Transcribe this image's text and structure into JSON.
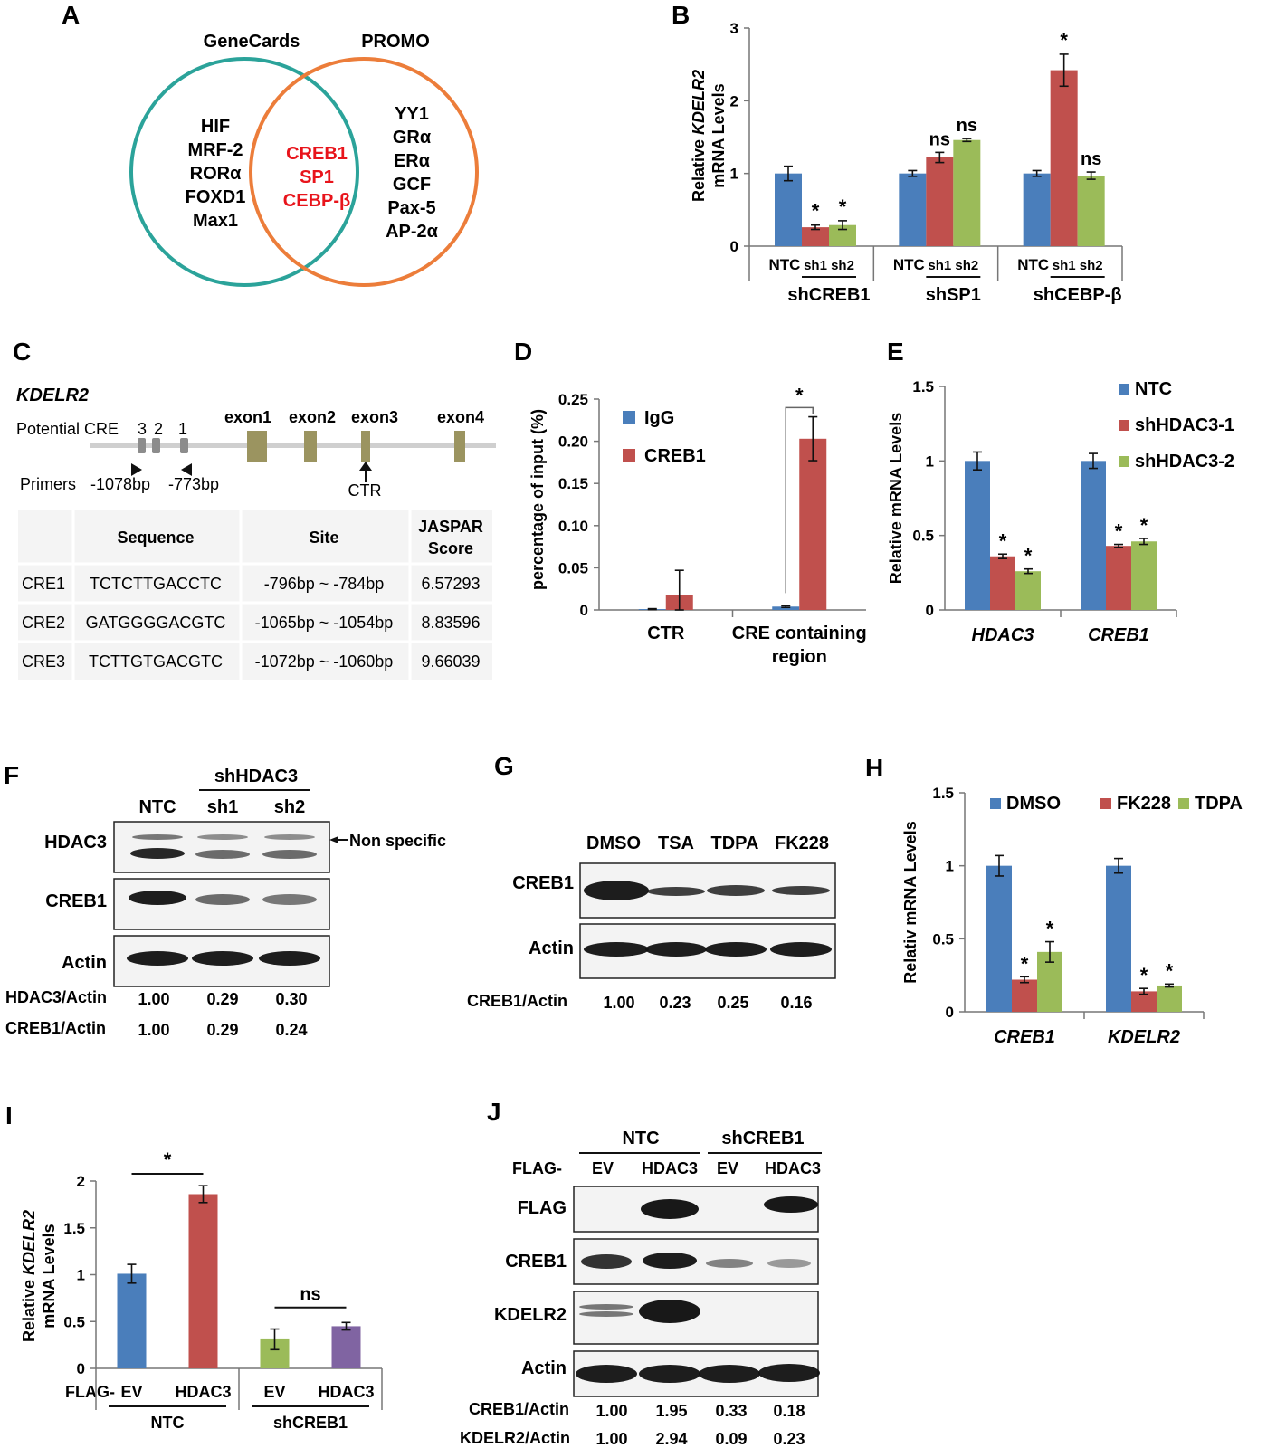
{
  "colors": {
    "blue": "#4a7ebb",
    "red": "#c0504d",
    "green": "#9bbb59",
    "purple": "#8064a2",
    "teal": "#2ba39a",
    "orange": "#ec7d3a",
    "highlight": "#e8141b",
    "gene_bar": "#9b9460",
    "cre_box": "#8c8c8c"
  },
  "panels": {
    "A": {
      "label": "A",
      "left_title": "GeneCards",
      "right_title": "PROMO",
      "left_only": [
        "HIF",
        "MRF-2",
        "RORα",
        "FOXD1",
        "Max1"
      ],
      "overlap": [
        "CREB1",
        "SP1",
        "CEBP-β"
      ],
      "right_only": [
        "YY1",
        "GRα",
        "ERα",
        "GCF",
        "Pax-5",
        "AP-2α"
      ]
    },
    "B": {
      "label": "B"
    },
    "C": {
      "label": "C",
      "gene": "KDELR2",
      "cre_label": "Potential CRE",
      "cre_numbers": [
        "3",
        "2",
        "1"
      ],
      "exons": [
        "exon1",
        "exon2",
        "exon3",
        "exon4"
      ],
      "primers_label": "Primers",
      "primer_left": "-1078bp",
      "primer_right": "-773bp",
      "ctr_label": "CTR",
      "table": {
        "headers": [
          "",
          "Sequence",
          "Site",
          "JASPAR",
          "Score"
        ],
        "rows": [
          [
            "CRE1",
            "TCTCTTGACCTC",
            "-796bp ~ -784bp",
            "6.57293"
          ],
          [
            "CRE2",
            "GATGGGGACGTC",
            "-1065bp ~ -1054bp",
            "8.83596"
          ],
          [
            "CRE3",
            "TCTTGTGACGTC",
            "-1072bp ~ -1060bp",
            "9.66039"
          ]
        ]
      }
    },
    "D": {
      "label": "D"
    },
    "E": {
      "label": "E"
    },
    "F": {
      "label": "F",
      "group_label": "shHDAC3",
      "lanes": [
        "NTC",
        "sh1",
        "sh2"
      ],
      "blots": [
        "HDAC3",
        "CREB1",
        "Actin"
      ],
      "annotation": "Non specific",
      "quant": [
        {
          "label": "HDAC3/Actin",
          "values": [
            "1.00",
            "0.29",
            "0.30"
          ]
        },
        {
          "label": "CREB1/Actin",
          "values": [
            "1.00",
            "0.29",
            "0.24"
          ]
        }
      ]
    },
    "G": {
      "label": "G",
      "lanes": [
        "DMSO",
        "TSA",
        "TDPA",
        "FK228"
      ],
      "blots": [
        "CREB1",
        "Actin"
      ],
      "quant": [
        {
          "label": "CREB1/Actin",
          "values": [
            "1.00",
            "0.23",
            "0.25",
            "0.16"
          ]
        }
      ]
    },
    "H": {
      "label": "H"
    },
    "I": {
      "label": "I"
    },
    "J": {
      "label": "J",
      "groups": [
        "NTC",
        "shCREB1"
      ],
      "flag_label": "FLAG-",
      "lanes": [
        "EV",
        "HDAC3",
        "EV",
        "HDAC3"
      ],
      "blots": [
        "FLAG",
        "CREB1",
        "KDELR2",
        "Actin"
      ],
      "quant": [
        {
          "label": "CREB1/Actin",
          "values": [
            "1.00",
            "1.95",
            "0.33",
            "0.18"
          ]
        },
        {
          "label": "KDELR2/Actin",
          "values": [
            "1.00",
            "2.94",
            "0.09",
            "0.23"
          ]
        }
      ]
    }
  },
  "chart_data": [
    {
      "panel": "B",
      "type": "bar",
      "ylabel": "Relative KDELR2 mRNA Levels",
      "ylabel_parts": [
        "Relative ",
        "KDELR2",
        "mRNA Levels"
      ],
      "ylim": [
        0,
        3
      ],
      "yticks": [
        "0",
        "1",
        "2",
        "3"
      ],
      "groups": [
        "shCREB1",
        "shSP1",
        "shCEBP-β"
      ],
      "bar_labels": [
        [
          "NTC",
          "sh1",
          "sh2"
        ],
        [
          "NTC",
          "sh1",
          "sh2"
        ],
        [
          "NTC",
          "sh1",
          "sh2"
        ]
      ],
      "values": [
        [
          1.0,
          0.26,
          0.29
        ],
        [
          1.0,
          1.22,
          1.46
        ],
        [
          1.0,
          2.42,
          0.97
        ]
      ],
      "errors": [
        [
          0.1,
          0.03,
          0.06
        ],
        [
          0.04,
          0.07,
          0.02
        ],
        [
          0.04,
          0.22,
          0.05
        ]
      ],
      "annotations": [
        [
          "",
          "*",
          "*"
        ],
        [
          "",
          "ns",
          "ns"
        ],
        [
          "",
          "*",
          "ns"
        ]
      ],
      "legend": "none",
      "grid": false
    },
    {
      "panel": "D",
      "type": "bar",
      "ylabel": "percentage of input (%)",
      "ylim": [
        0,
        0.25
      ],
      "yticks": [
        "0",
        "0.05",
        "0.10",
        "0.15",
        "0.20",
        "0.25"
      ],
      "categories": [
        "CTR",
        "CRE containing region"
      ],
      "series": [
        {
          "name": "IgG",
          "values": [
            0.001,
            0.004
          ],
          "errors": [
            0.0005,
            0.001
          ]
        },
        {
          "name": "CREB1",
          "values": [
            0.018,
            0.203
          ],
          "errors": [
            0.029,
            0.026
          ]
        }
      ],
      "significance": [
        {
          "category": 1,
          "label": "*"
        }
      ],
      "legend": "top-left",
      "grid": false
    },
    {
      "panel": "E",
      "type": "bar",
      "ylabel": "Relative mRNA Levels",
      "ylim": [
        0,
        1.5
      ],
      "yticks": [
        "0",
        "0.5",
        "1",
        "1.5"
      ],
      "categories": [
        "HDAC3",
        "CREB1"
      ],
      "series": [
        {
          "name": "NTC",
          "values": [
            1.0,
            1.0
          ],
          "errors": [
            0.06,
            0.05
          ]
        },
        {
          "name": "shHDAC3-1",
          "values": [
            0.36,
            0.43
          ],
          "errors": [
            0.015,
            0.01
          ]
        },
        {
          "name": "shHDAC3-2",
          "values": [
            0.26,
            0.46
          ],
          "errors": [
            0.015,
            0.02
          ]
        }
      ],
      "annotations": [
        [
          "",
          "*",
          "*"
        ],
        [
          "",
          "*",
          "*"
        ]
      ],
      "legend": "top-right",
      "grid": false
    },
    {
      "panel": "H",
      "type": "bar",
      "ylabel": "Relativ mRNA Levels",
      "ylim": [
        0,
        1.5
      ],
      "yticks": [
        "0",
        "0.5",
        "1",
        "1.5"
      ],
      "categories": [
        "CREB1",
        "KDELR2"
      ],
      "series": [
        {
          "name": "DMSO",
          "values": [
            1.0,
            1.0
          ],
          "errors": [
            0.07,
            0.05
          ]
        },
        {
          "name": "FK228",
          "values": [
            0.22,
            0.14
          ],
          "errors": [
            0.02,
            0.02
          ]
        },
        {
          "name": "TDPA",
          "values": [
            0.41,
            0.18
          ],
          "errors": [
            0.07,
            0.01
          ]
        }
      ],
      "annotations": [
        [
          "",
          "*",
          "*"
        ],
        [
          "",
          "*",
          "*"
        ]
      ],
      "legend": "top",
      "grid": false
    },
    {
      "panel": "I",
      "type": "bar",
      "ylabel": "Relative KDELR2 mRNA Levels",
      "ylabel_parts": [
        "Relative ",
        "KDELR2",
        "mRNA Levels"
      ],
      "ylim": [
        0,
        2
      ],
      "yticks": [
        "0",
        "0.5",
        "1",
        "1.5",
        "2"
      ],
      "x_prefix": "FLAG-",
      "categories": [
        "EV",
        "HDAC3",
        "EV",
        "HDAC3"
      ],
      "groups": [
        "NTC",
        "shCREB1"
      ],
      "values": [
        1.01,
        1.86,
        0.31,
        0.45
      ],
      "errors": [
        0.1,
        0.09,
        0.11,
        0.04
      ],
      "significance": [
        {
          "pair": [
            0,
            1
          ],
          "label": "*"
        },
        {
          "pair": [
            2,
            3
          ],
          "label": "ns"
        }
      ],
      "legend": "none",
      "grid": false
    }
  ]
}
